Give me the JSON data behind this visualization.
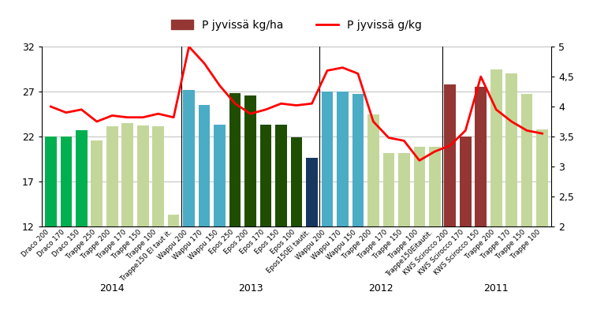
{
  "categories": [
    "Draco 200",
    "Draco 170",
    "Draco 150",
    "Trappe 250",
    "Trappe 200",
    "Trappe 170",
    "Trappe 150",
    "Trappe 100",
    "Trappe150 El taut it.",
    "Wappu 200",
    "Wappu 170",
    "Wappu 150",
    "Epos 250",
    "Epos 200",
    "Epos 170",
    "Epos 150",
    "Epos 100",
    "Epos150El tautit.",
    "Wappu 200",
    "Wappu 170",
    "Wappu 150",
    "Trappe 200",
    "Trappe 170",
    "Trappe 150",
    "Trappe 100",
    "Trappe150Eitautit.",
    "KWS Scirocco 200",
    "KWS Scirocco 170",
    "KWS Scirocco 150",
    "Trappe 200",
    "Trappe 170",
    "Trappe 150",
    "Trappe 100"
  ],
  "bar_values": [
    22.0,
    22.0,
    22.7,
    21.6,
    23.1,
    23.5,
    23.2,
    23.1,
    13.3,
    27.2,
    25.5,
    23.3,
    26.8,
    26.6,
    23.3,
    23.3,
    21.9,
    19.6,
    27.0,
    27.0,
    26.7,
    24.5,
    20.2,
    20.2,
    20.9,
    20.9,
    27.8,
    22.0,
    27.5,
    29.5,
    29.0,
    26.7,
    22.8
  ],
  "bar_colors": [
    "#00b050",
    "#00b050",
    "#00b050",
    "#c4d79b",
    "#c4d79b",
    "#c4d79b",
    "#c4d79b",
    "#c4d79b",
    "#c4d79b",
    "#4bacc6",
    "#4bacc6",
    "#4bacc6",
    "#1f4e00",
    "#1f4e00",
    "#1f4e00",
    "#1f4e00",
    "#1f4e00",
    "#17375e",
    "#4bacc6",
    "#4bacc6",
    "#4bacc6",
    "#c4d79b",
    "#c4d79b",
    "#c4d79b",
    "#c4d79b",
    "#c4d79b",
    "#943634",
    "#943634",
    "#943634",
    "#c4d79b",
    "#c4d79b",
    "#c4d79b",
    "#c4d79b"
  ],
  "line_values": [
    4.0,
    3.9,
    3.95,
    3.75,
    3.85,
    3.82,
    3.82,
    3.88,
    3.82,
    5.0,
    4.72,
    4.35,
    4.05,
    3.88,
    3.95,
    4.05,
    4.02,
    4.05,
    4.6,
    4.65,
    4.55,
    3.75,
    3.48,
    3.43,
    3.1,
    3.25,
    3.35,
    3.6,
    4.5,
    3.95,
    3.75,
    3.6,
    3.55
  ],
  "group_labels": [
    "2014",
    "2013",
    "2012",
    "2011"
  ],
  "group_boundaries": [
    0,
    9,
    18,
    26,
    33
  ],
  "ylim_left": [
    12,
    32
  ],
  "ylim_right": [
    2,
    5
  ],
  "yticks_left": [
    12,
    17,
    22,
    27,
    32
  ],
  "yticks_right": [
    2,
    2.5,
    3,
    3.5,
    4,
    4.5,
    5
  ],
  "ytick_labels_right": [
    "2",
    "2,5",
    "3",
    "3,5",
    "4",
    "4,5",
    "5"
  ],
  "ytick_labels_left": [
    "12",
    "17",
    "22",
    "27",
    "32"
  ],
  "legend_bar_label": "P jyvissä kg/ha",
  "legend_line_label": "P jyvissä g/kg",
  "bar_legend_color": "#943634",
  "line_legend_color": "#ff0000",
  "bg_color": "#ffffff",
  "grid_color": "#bfbfbf"
}
